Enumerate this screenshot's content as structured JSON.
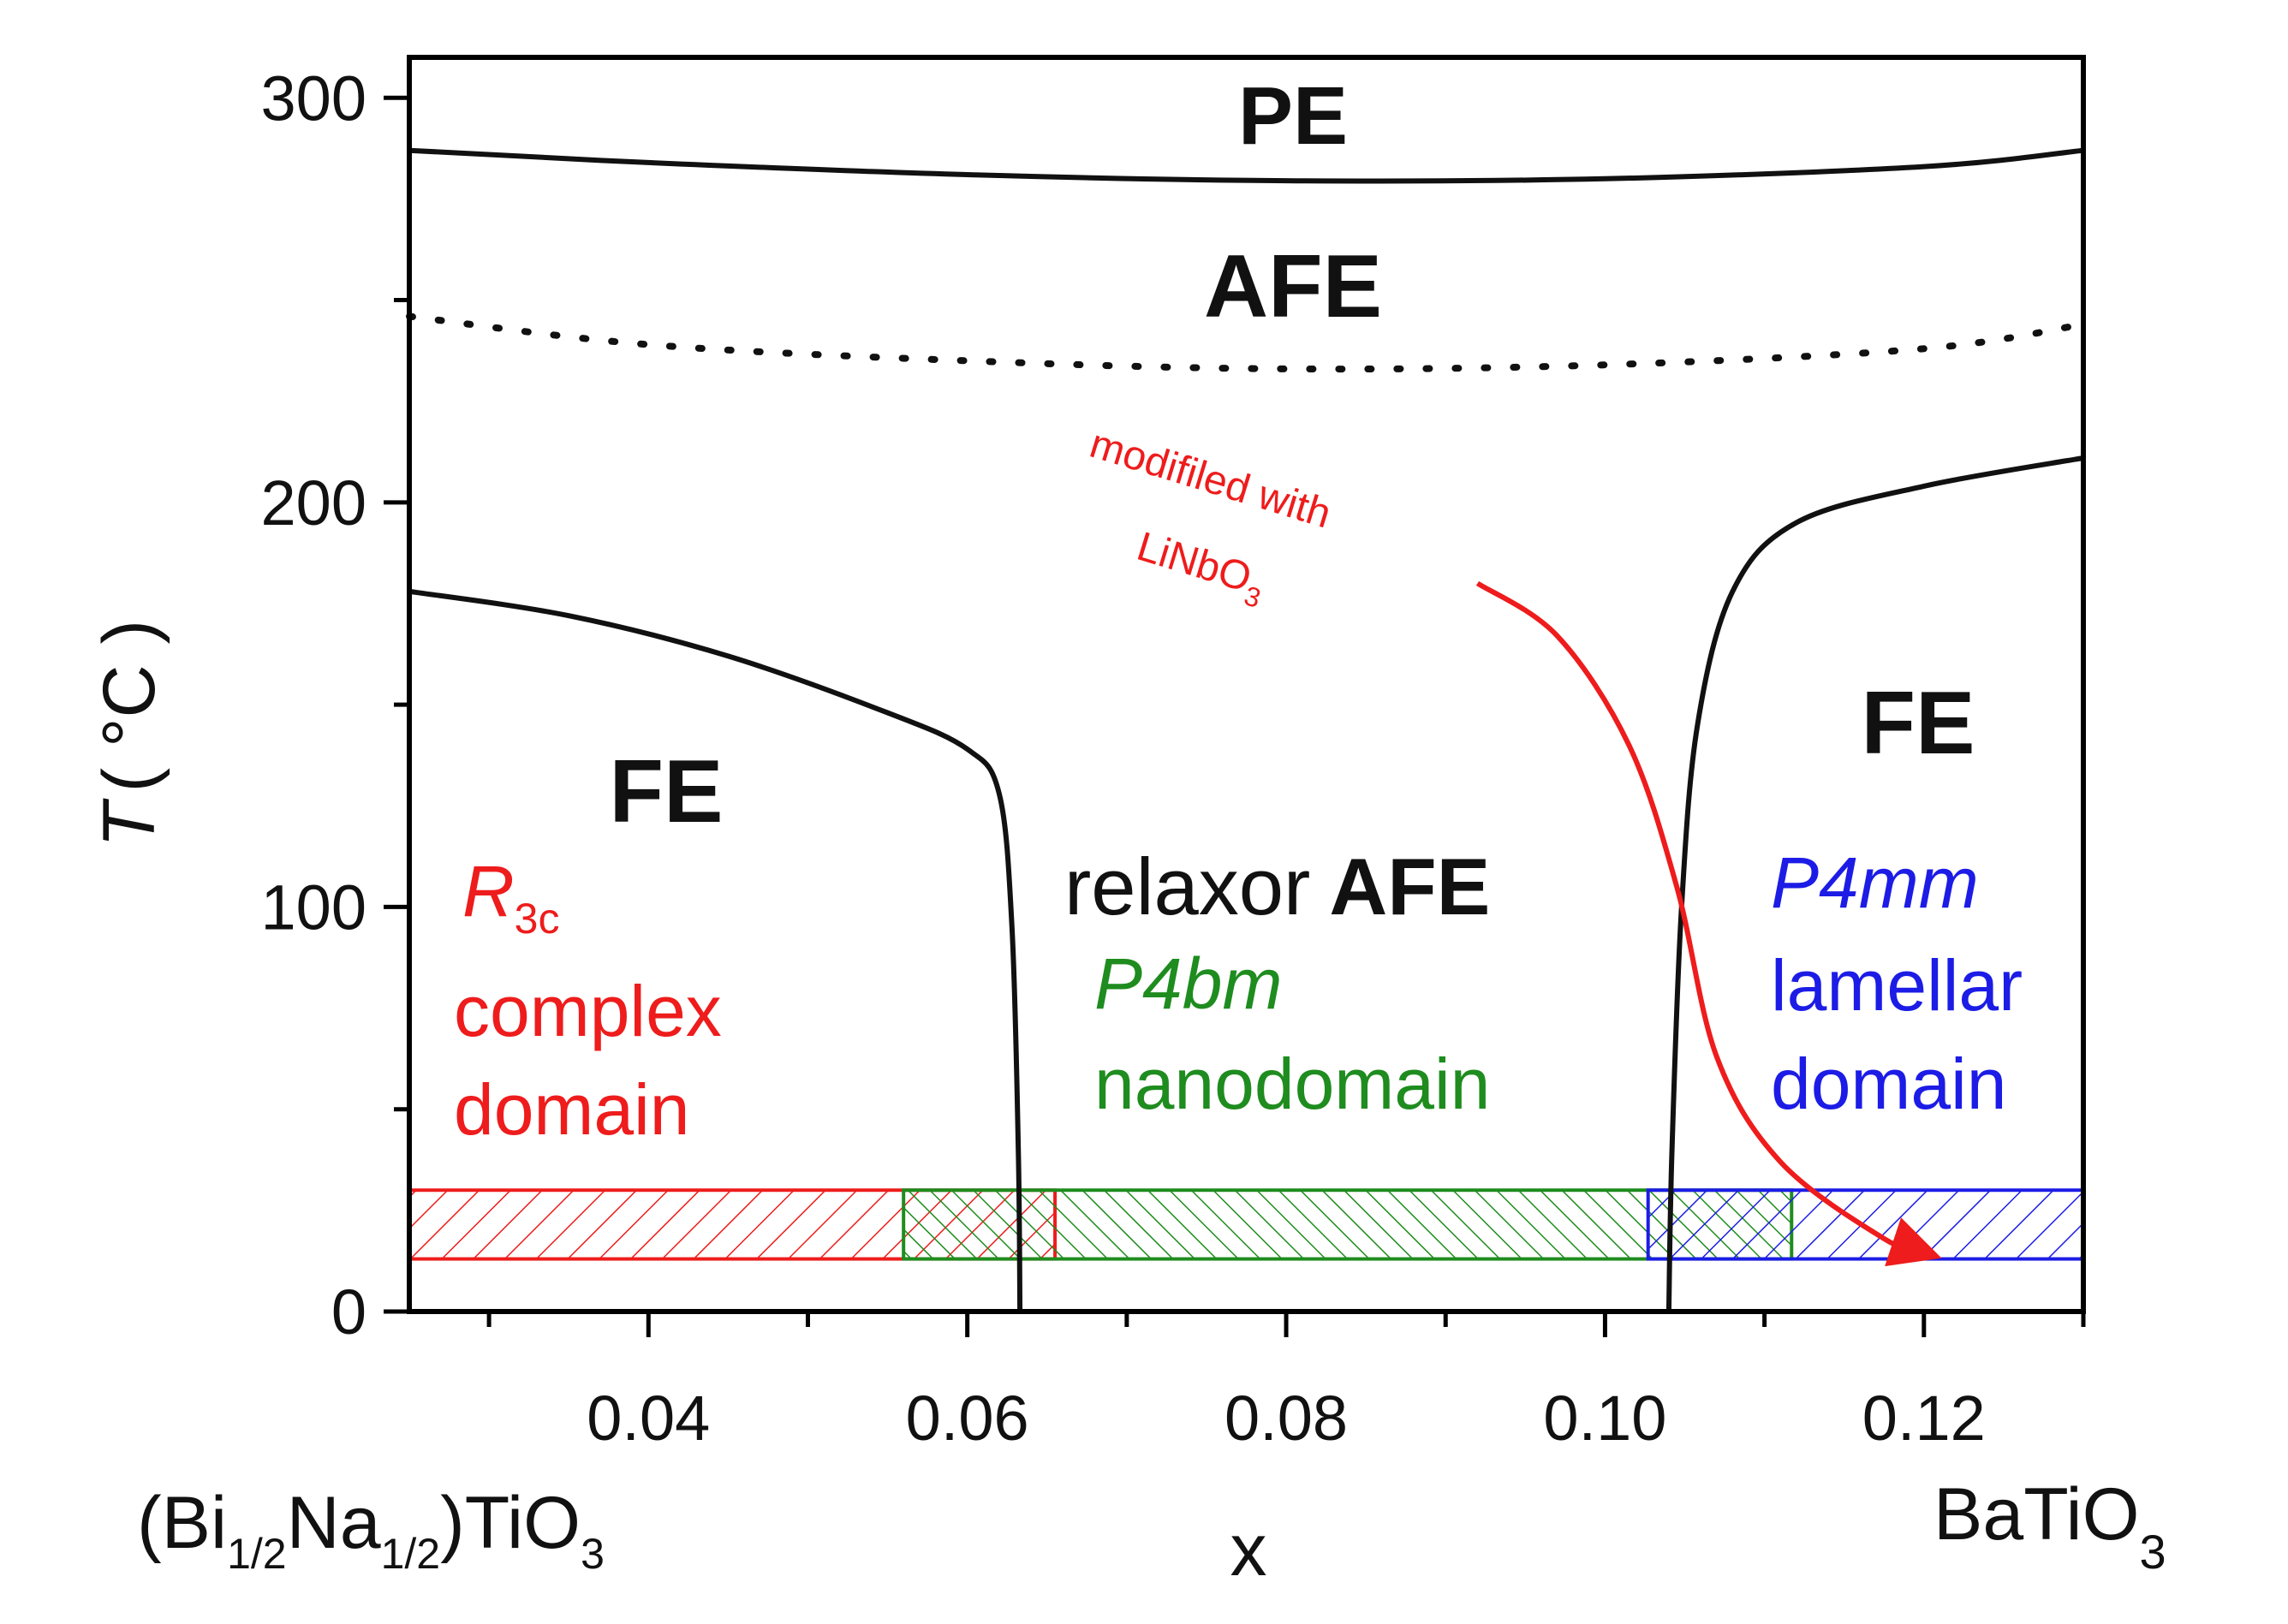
{
  "chart_data": {
    "type": "phase-diagram",
    "title": "",
    "xlabel": "x",
    "ylabel_italic": "T",
    "ylabel_rest": "( °C )",
    "xlim": [
      0.025,
      0.13
    ],
    "ylim": [
      0,
      310
    ],
    "x_ticks": [
      {
        "value": 0.04,
        "label": "0.04"
      },
      {
        "value": 0.06,
        "label": "0.06"
      },
      {
        "value": 0.08,
        "label": "0.08"
      },
      {
        "value": 0.1,
        "label": "0.10"
      },
      {
        "value": 0.12,
        "label": "0.12"
      }
    ],
    "x_minor_ticks": [
      0.03,
      0.05,
      0.07,
      0.09,
      0.11,
      0.13
    ],
    "y_ticks": [
      {
        "value": 0,
        "label": "0"
      },
      {
        "value": 100,
        "label": "100"
      },
      {
        "value": 200,
        "label": "200"
      },
      {
        "value": 300,
        "label": "300"
      }
    ],
    "y_minor_ticks": [
      50,
      150,
      250
    ],
    "x_end_labels": {
      "left": {
        "base": "(Bi",
        "sub1": "1/2",
        "mid": "Na",
        "sub2": "1/2",
        "rest": ")TiO",
        "sub3": "3"
      },
      "right": {
        "base": "BaTiO",
        "sub": "3"
      }
    },
    "boundaries": [
      {
        "name": "PE-AFE",
        "style": "solid",
        "points": [
          [
            0.025,
            287
          ],
          [
            0.04,
            284
          ],
          [
            0.06,
            281
          ],
          [
            0.08,
            279.5
          ],
          [
            0.1,
            280
          ],
          [
            0.12,
            283
          ],
          [
            0.13,
            287
          ]
        ]
      },
      {
        "name": "AFE-dotted",
        "style": "dotted",
        "points": [
          [
            0.025,
            246
          ],
          [
            0.04,
            239
          ],
          [
            0.06,
            235
          ],
          [
            0.08,
            233
          ],
          [
            0.1,
            234
          ],
          [
            0.12,
            238
          ],
          [
            0.13,
            244
          ]
        ]
      },
      {
        "name": "FE-relaxor-left",
        "style": "solid",
        "points": [
          [
            0.025,
            178
          ],
          [
            0.035,
            172
          ],
          [
            0.045,
            162
          ],
          [
            0.055,
            148
          ],
          [
            0.06,
            139
          ],
          [
            0.062,
            128
          ],
          [
            0.0628,
            95
          ],
          [
            0.0632,
            40
          ],
          [
            0.0633,
            0
          ]
        ]
      },
      {
        "name": "relaxor-FE-right",
        "style": "solid",
        "points": [
          [
            0.104,
            0
          ],
          [
            0.1042,
            40
          ],
          [
            0.1048,
            100
          ],
          [
            0.1058,
            145
          ],
          [
            0.108,
            178
          ],
          [
            0.112,
            195
          ],
          [
            0.12,
            204
          ],
          [
            0.13,
            211
          ]
        ]
      }
    ],
    "arrow": {
      "color": "#ee1c1c",
      "points": [
        [
          0.092,
          180
        ],
        [
          0.097,
          167
        ],
        [
          0.1015,
          140
        ],
        [
          0.1045,
          105
        ],
        [
          0.107,
          63
        ],
        [
          0.111,
          37
        ],
        [
          0.1175,
          18
        ],
        [
          0.1205,
          14
        ]
      ],
      "label_line1": "modifiled with",
      "label_line2_base": "LiNbO",
      "label_line2_sub": "3"
    },
    "hatch_bands": [
      {
        "name": "R3c",
        "color": "#ee1c1c",
        "x_range": [
          0.025,
          0.0655
        ],
        "y_range": [
          13,
          30
        ],
        "pattern": "forward"
      },
      {
        "name": "P4bm",
        "color": "#1e8c1e",
        "x_range": [
          0.056,
          0.1117
        ],
        "y_range": [
          13,
          30
        ],
        "pattern": "backward"
      },
      {
        "name": "P4mm",
        "color": "#1c1ce6",
        "x_range": [
          0.1027,
          0.13
        ],
        "y_range": [
          13,
          30
        ],
        "pattern": "forward"
      }
    ],
    "regions": {
      "pe": "PE",
      "afe": "AFE",
      "fe_left": "FE",
      "fe_right": "FE",
      "relaxor": "relaxor",
      "relaxor_afe": "AFE"
    },
    "annotations": {
      "red": {
        "color": "#ee1c1c",
        "symbol": "R",
        "symbol_sub": "3c",
        "line1": "complex",
        "line2": "domain"
      },
      "green": {
        "color": "#1e8c1e",
        "symbol": "P4bm",
        "line1": "nanodomain"
      },
      "blue": {
        "color": "#1c1ce6",
        "symbol": "P4mm",
        "line1": "lamellar",
        "line2": "domain"
      }
    }
  }
}
